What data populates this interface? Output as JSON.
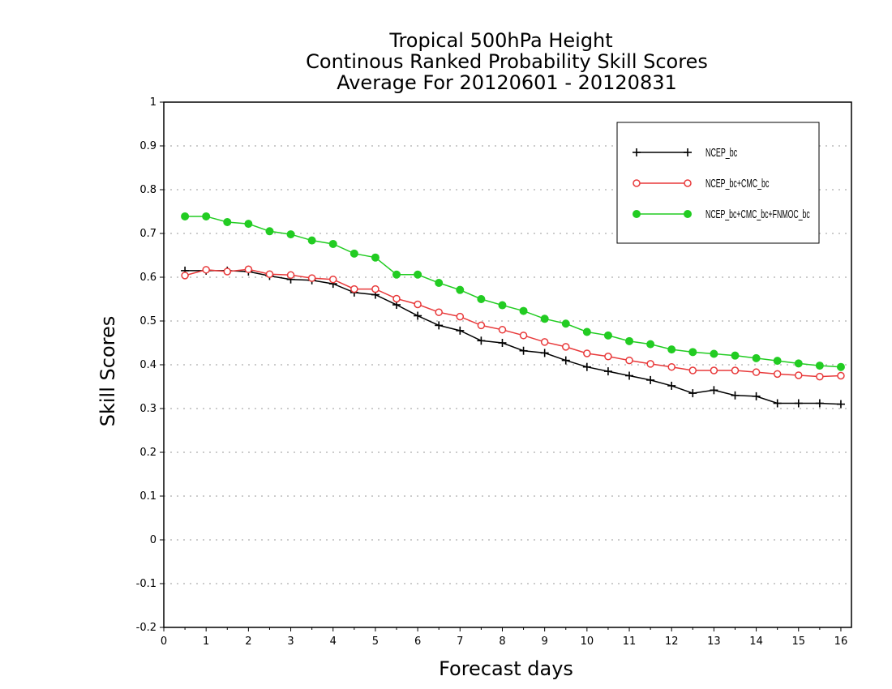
{
  "chart_data": {
    "type": "line",
    "title_lines": [
      "Tropical 500hPa Height",
      "Continous Ranked Probability Skill Scores",
      "Average For 20120601 - 20120831"
    ],
    "xlabel": "Forecast days",
    "ylabel": "Skill Scores",
    "xlim": [
      0,
      16.25
    ],
    "ylim": [
      -0.2,
      1
    ],
    "xticks": [
      0,
      1,
      2,
      3,
      4,
      5,
      6,
      7,
      8,
      9,
      10,
      11,
      12,
      13,
      14,
      15,
      16
    ],
    "yticks": [
      -0.2,
      -0.1,
      0,
      0.1,
      0.2,
      0.3,
      0.4,
      0.5,
      0.6,
      0.7,
      0.8,
      0.9,
      1
    ],
    "ytick_labels": [
      "-0.2",
      "-0.1",
      "0",
      "0.1",
      "0.2",
      "0.3",
      "0.4",
      "0.5",
      "0.6",
      "0.7",
      "0.8",
      "0.9",
      "1"
    ],
    "grid": "horizontal dotted",
    "legend_position": "top-right",
    "x": [
      0.5,
      1,
      1.5,
      2,
      2.5,
      3,
      3.5,
      4,
      4.5,
      5,
      5.5,
      6,
      6.5,
      7,
      7.5,
      8,
      8.5,
      9,
      9.5,
      10,
      10.5,
      11,
      11.5,
      12,
      12.5,
      13,
      13.5,
      14,
      14.5,
      15,
      15.5,
      16
    ],
    "series": [
      {
        "name": "NCEP_bc",
        "color": "#000000",
        "marker": "plus",
        "values": [
          0.615,
          0.615,
          0.615,
          0.613,
          0.603,
          0.595,
          0.593,
          0.585,
          0.565,
          0.56,
          0.537,
          0.512,
          0.49,
          0.478,
          0.455,
          0.45,
          0.432,
          0.427,
          0.41,
          0.395,
          0.385,
          0.375,
          0.365,
          0.352,
          0.335,
          0.342,
          0.33,
          0.328,
          0.312,
          0.312,
          0.312,
          0.31
        ]
      },
      {
        "name": "NCEP_bc+CMC_bc",
        "color": "#e8393a",
        "marker": "open-circle",
        "values": [
          0.604,
          0.617,
          0.613,
          0.618,
          0.607,
          0.605,
          0.598,
          0.595,
          0.573,
          0.573,
          0.551,
          0.538,
          0.52,
          0.51,
          0.49,
          0.48,
          0.467,
          0.452,
          0.441,
          0.426,
          0.419,
          0.41,
          0.402,
          0.395,
          0.387,
          0.387,
          0.387,
          0.383,
          0.379,
          0.376,
          0.373,
          0.375
        ]
      },
      {
        "name": "NCEP_bc+CMC_bc+FNMOC_bc",
        "color": "#22cc22",
        "marker": "filled-circle",
        "values": [
          0.739,
          0.739,
          0.726,
          0.722,
          0.705,
          0.698,
          0.684,
          0.676,
          0.654,
          0.645,
          0.606,
          0.606,
          0.587,
          0.571,
          0.55,
          0.536,
          0.523,
          0.505,
          0.494,
          0.475,
          0.467,
          0.454,
          0.447,
          0.435,
          0.429,
          0.425,
          0.421,
          0.415,
          0.409,
          0.403,
          0.398,
          0.395
        ]
      }
    ]
  }
}
